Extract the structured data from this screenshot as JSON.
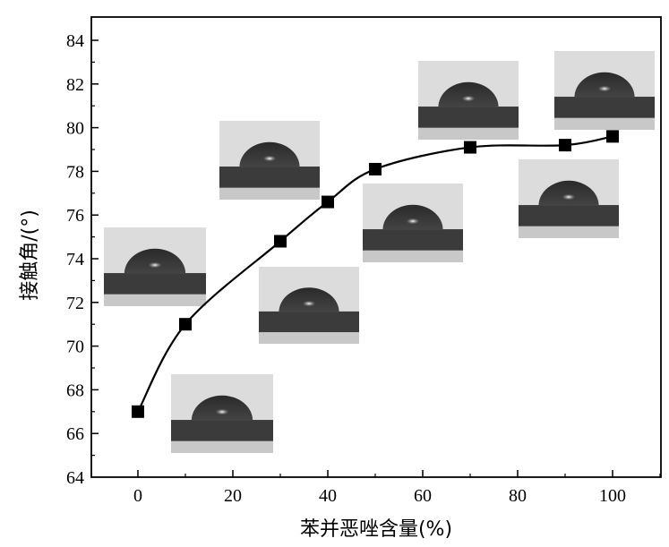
{
  "chart_data": {
    "type": "line",
    "title": "",
    "xlabel": "苯并恶唑含量(%)",
    "ylabel": "接触角/(°)",
    "xlim": [
      -10,
      110
    ],
    "ylim": [
      64,
      85
    ],
    "xticks": [
      0,
      20,
      40,
      60,
      80,
      100
    ],
    "yticks": [
      64,
      66,
      68,
      70,
      72,
      74,
      76,
      78,
      80,
      82,
      84
    ],
    "marker": "square",
    "grid": false,
    "legend": "none",
    "x": [
      0,
      10,
      30,
      40,
      50,
      70,
      90,
      100
    ],
    "y": [
      67.0,
      71.0,
      74.8,
      76.6,
      78.1,
      79.1,
      79.2,
      79.6
    ],
    "inset_images": "water droplet contact-angle photographs near each data point"
  }
}
